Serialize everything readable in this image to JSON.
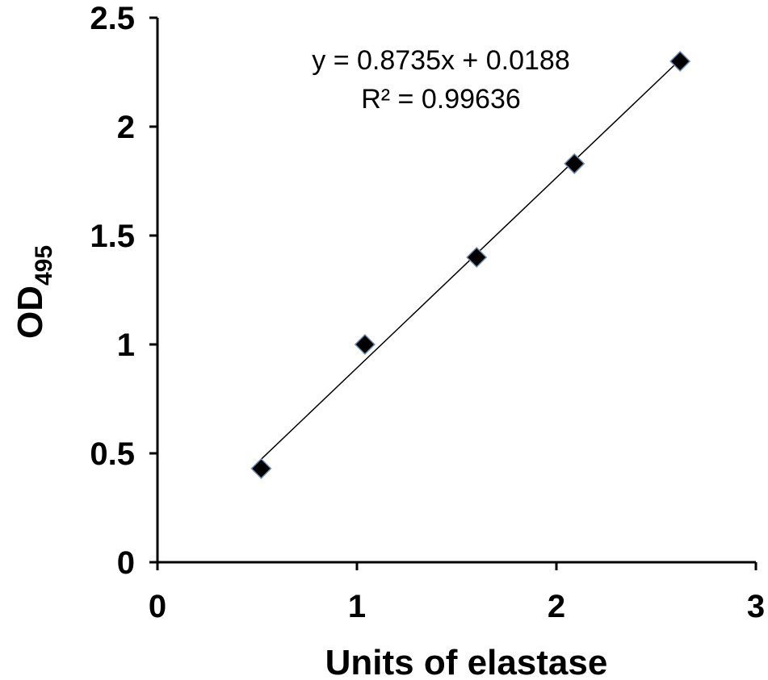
{
  "chart_data": {
    "type": "scatter",
    "xlabel": "Units of elastase",
    "ylabel": "OD",
    "ylabel_subscript": "495",
    "xlim": [
      0,
      3
    ],
    "ylim": [
      0,
      2.5
    ],
    "x_ticks": [
      0,
      1,
      2,
      3
    ],
    "x_tick_labels": [
      "0",
      "1",
      "2",
      "3"
    ],
    "y_ticks": [
      0,
      0.5,
      1,
      1.5,
      2,
      2.5
    ],
    "y_tick_labels": [
      "0",
      "0.5",
      "1",
      "1.5",
      "2",
      "2.5"
    ],
    "grid": false,
    "marker": "diamond",
    "marker_color": "#000000",
    "marker_edge_color": "#6f8fb4",
    "points": [
      {
        "x": 0.52,
        "y": 0.43
      },
      {
        "x": 1.04,
        "y": 1.0
      },
      {
        "x": 1.6,
        "y": 1.4
      },
      {
        "x": 2.09,
        "y": 1.83
      },
      {
        "x": 2.62,
        "y": 2.3
      }
    ],
    "trendline": {
      "type": "linear",
      "slope": 0.8735,
      "intercept": 0.0188,
      "x_start": 0.52,
      "x_end": 2.62
    },
    "annotations": {
      "equation": "y = 0.8735x + 0.0188",
      "r_squared": "R² = 0.99636"
    }
  }
}
